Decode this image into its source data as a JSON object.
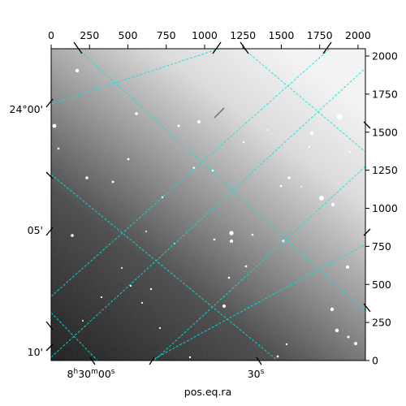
{
  "chart_data": {
    "type": "image",
    "title": "",
    "xlabel": "pos.eq.ra",
    "ylabel": "",
    "pixel_axes": {
      "x_ticks": [
        "0",
        "250",
        "500",
        "750",
        "1000",
        "1250",
        "1500",
        "1750",
        "2000"
      ],
      "x_tick_values": [
        0,
        250,
        500,
        750,
        1000,
        1250,
        1500,
        1750,
        2000
      ],
      "xlim": [
        0,
        2048
      ],
      "y_ticks": [
        "0",
        "250",
        "500",
        "750",
        "1000",
        "1250",
        "1500",
        "1750",
        "2000"
      ],
      "y_tick_values": [
        0,
        250,
        500,
        750,
        1000,
        1250,
        1500,
        1750,
        2000
      ],
      "ylim": [
        0,
        2048
      ]
    },
    "world_axes": {
      "ra_labels": [
        "8h30m00s",
        "30s"
      ],
      "dec_labels": [
        "24°00'",
        "05'",
        "10'"
      ]
    },
    "grid": true,
    "grid_color": "#00e5e5",
    "colormap": "gray",
    "background_gradient": "dark lower-left to bright upper-right"
  }
}
